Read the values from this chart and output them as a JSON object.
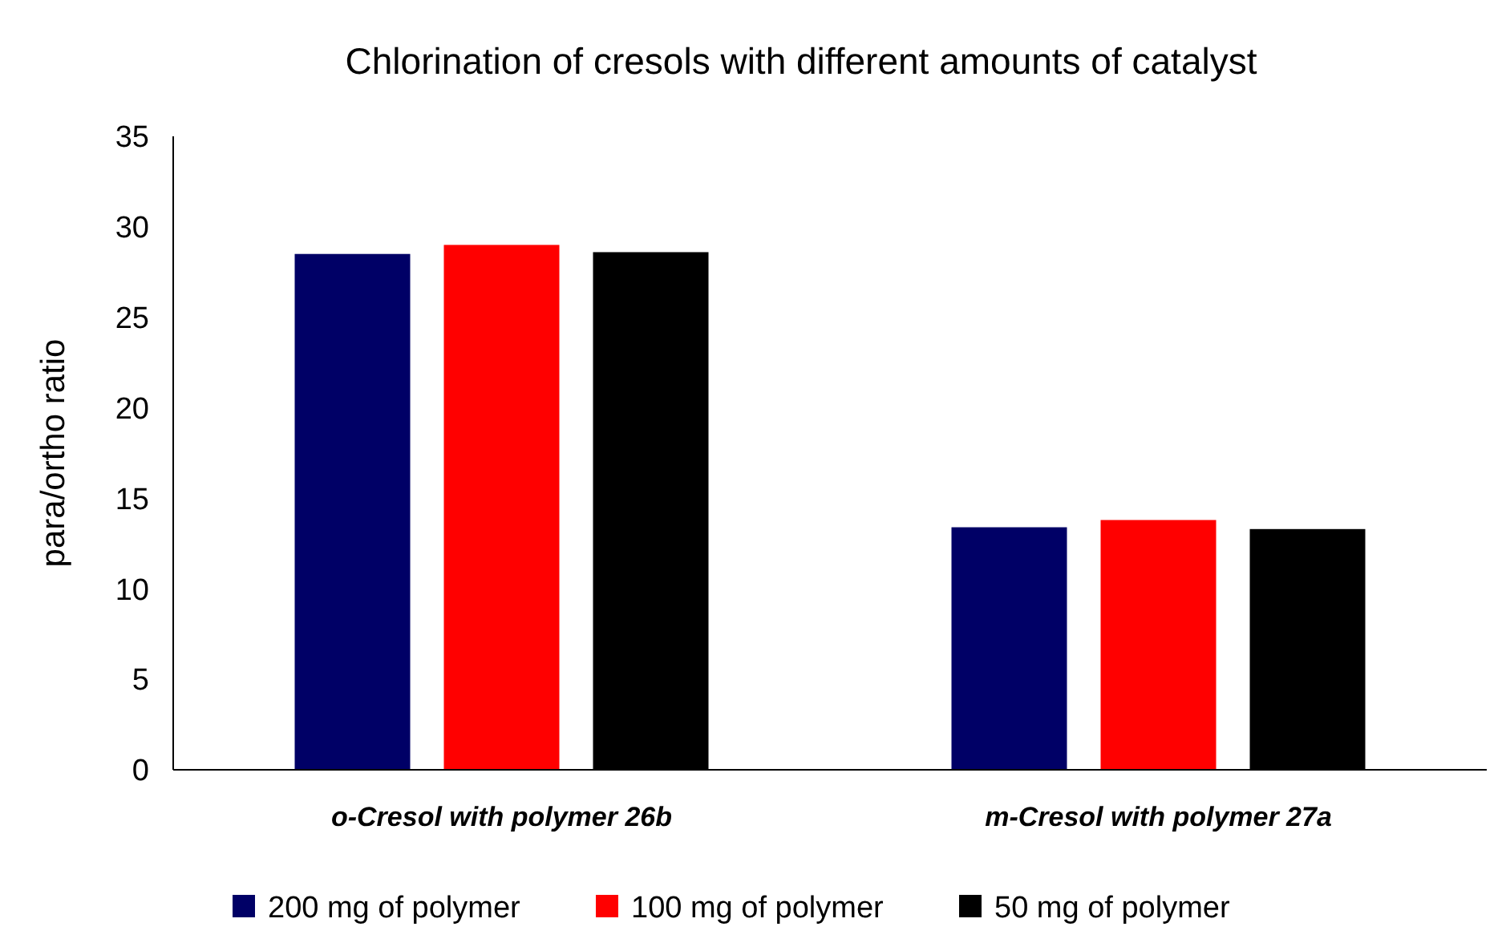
{
  "chart_data": {
    "type": "bar",
    "title": "Chlorination of cresols with different amounts of catalyst",
    "ylabel": "para/ortho ratio",
    "categories": [
      "o-Cresol with polymer 26b",
      "m-Cresol with polymer 27a"
    ],
    "series": [
      {
        "name": "200 mg of polymer",
        "color": "#000066",
        "values": [
          28.5,
          13.4
        ]
      },
      {
        "name": "100 mg of polymer",
        "color": "#ff0000",
        "values": [
          29.0,
          13.8
        ]
      },
      {
        "name": "50 mg of polymer",
        "color": "#000000",
        "values": [
          28.6,
          13.3
        ]
      }
    ],
    "ylim": [
      0,
      35
    ],
    "yticks": [
      0,
      5,
      10,
      15,
      20,
      25,
      30,
      35
    ],
    "grid": false,
    "legend": "bottom"
  }
}
